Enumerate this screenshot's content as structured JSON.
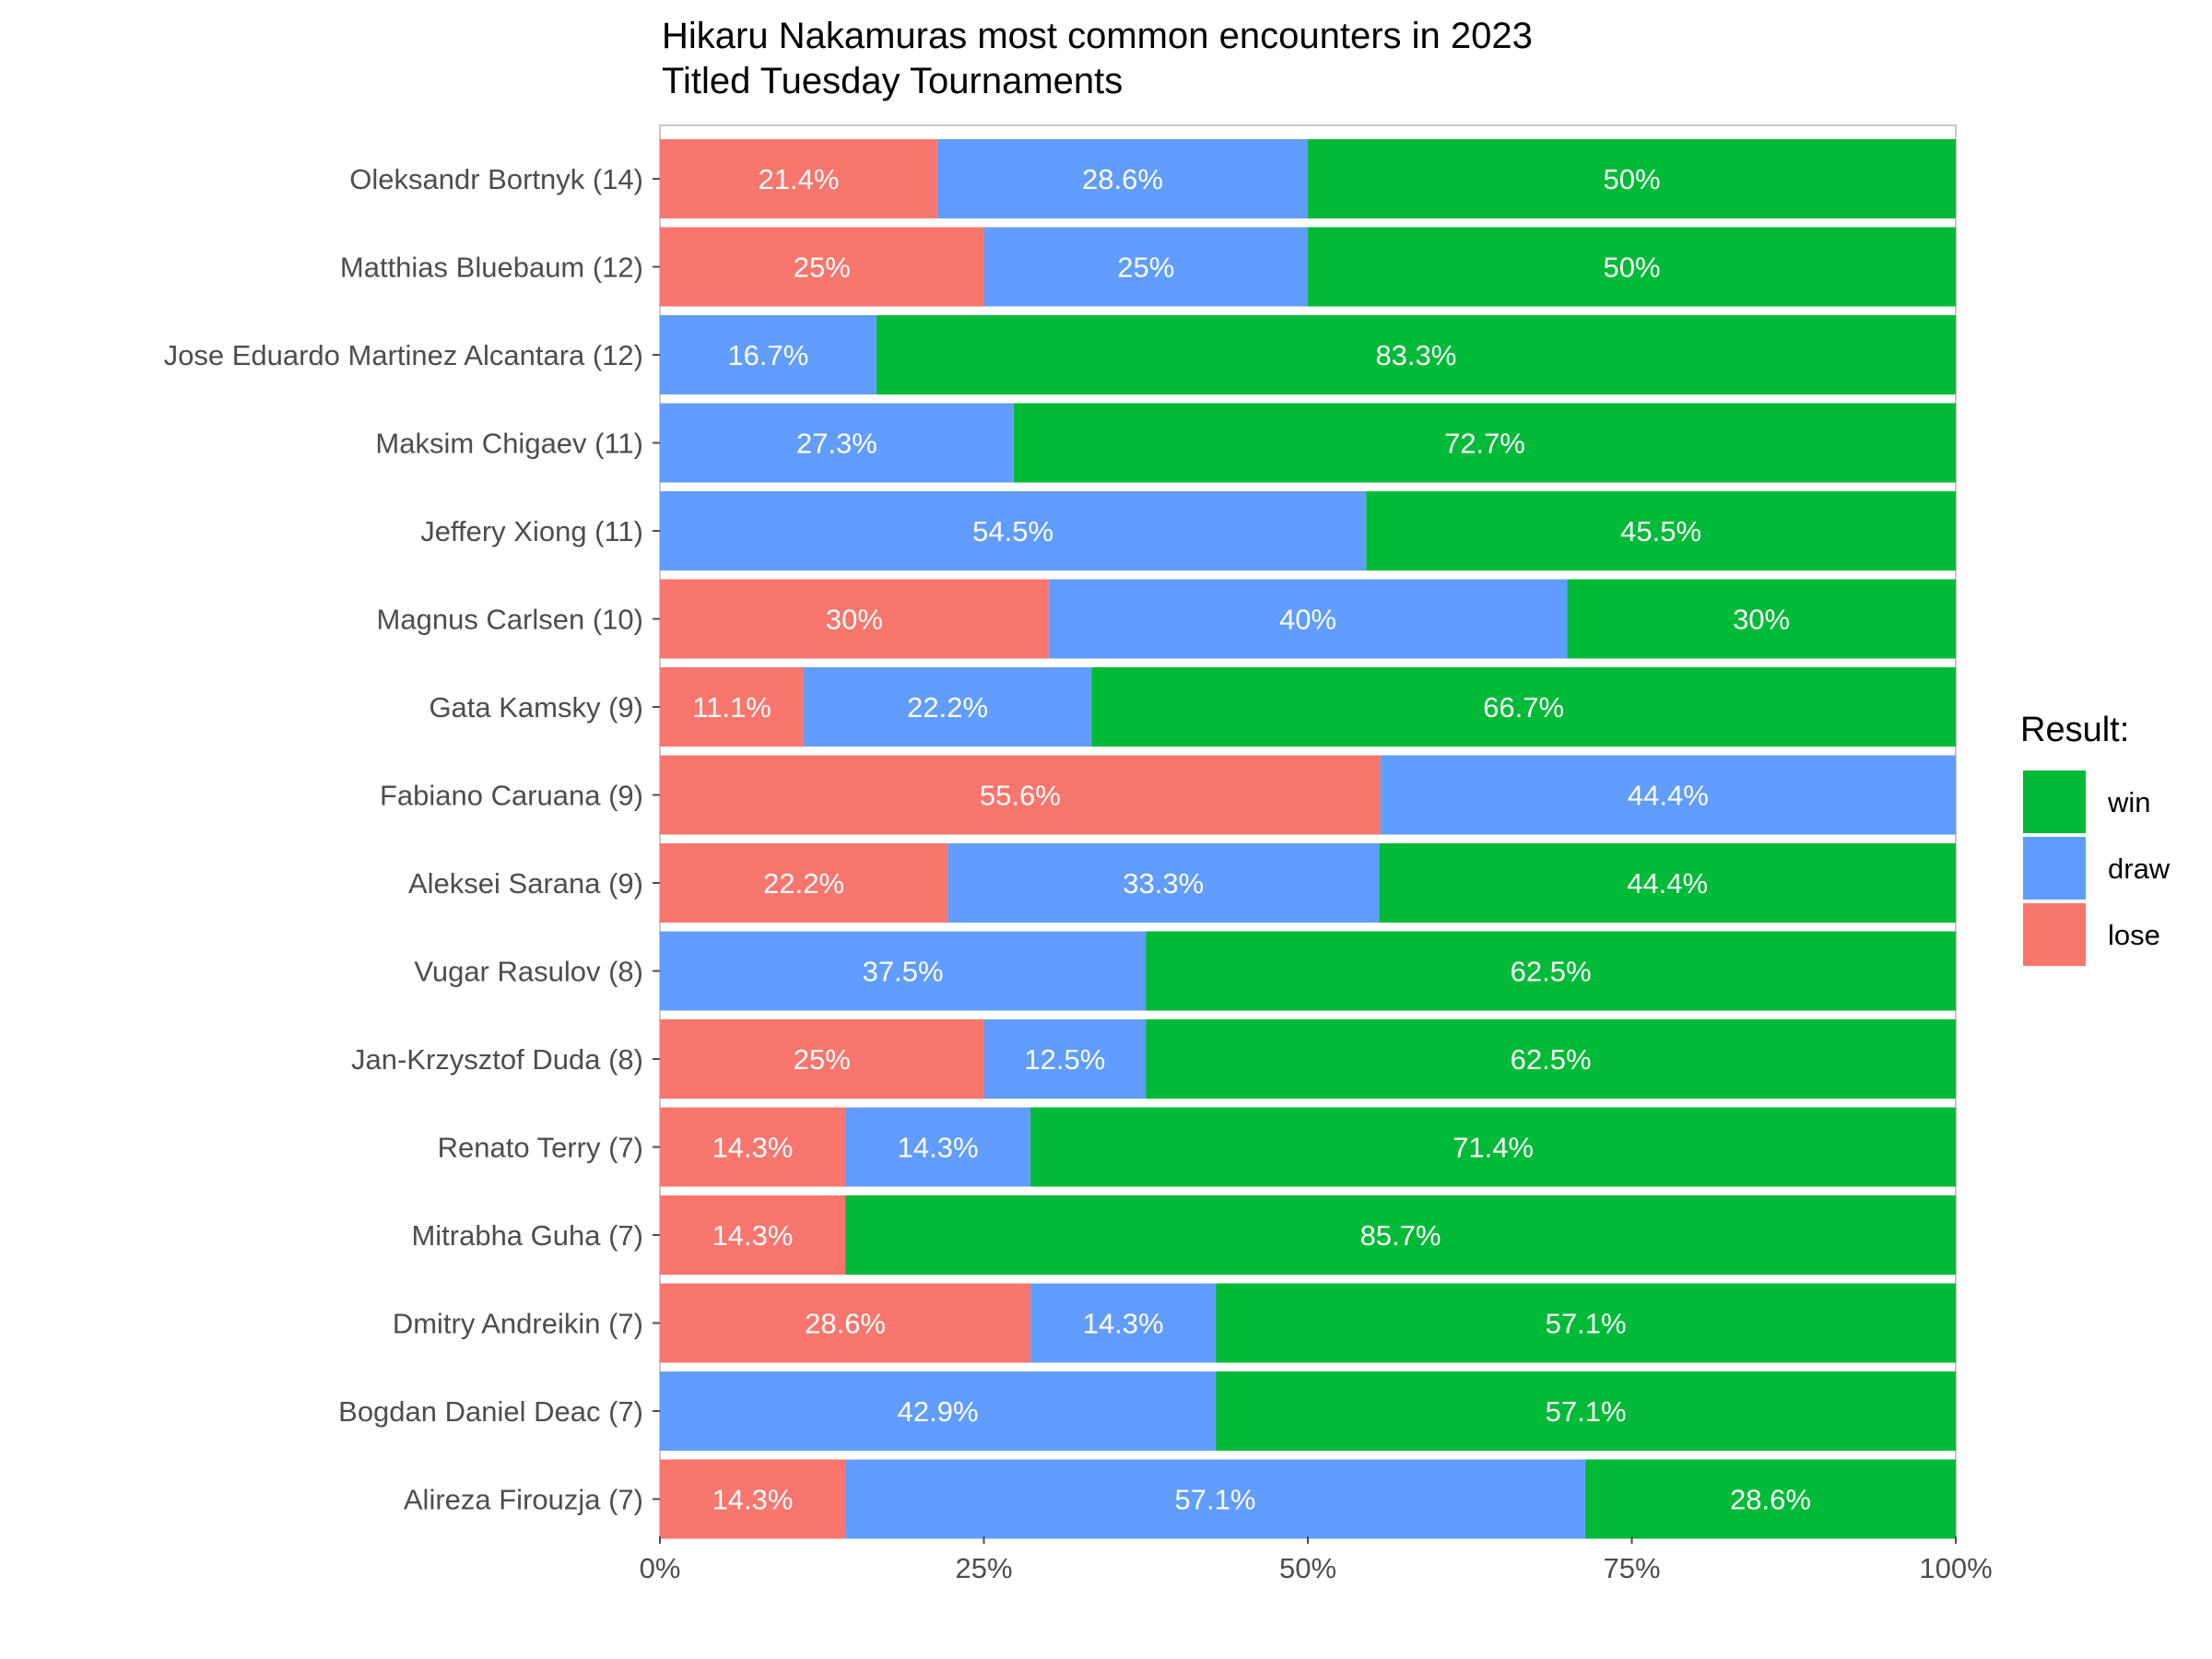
{
  "chart_data": {
    "type": "bar",
    "orientation": "horizontal",
    "stacked": true,
    "normalized": true,
    "title": "Hikaru Nakamuras most common encounters in 2023",
    "subtitle": "Titled Tuesday Tournaments",
    "xlabel": "",
    "ylabel": "",
    "xlim": [
      0,
      100
    ],
    "xticks": [
      "0%",
      "25%",
      "50%",
      "75%",
      "100%"
    ],
    "grid": false,
    "legend_title": "Result:",
    "legend_position": "right",
    "legend_entries": [
      "win",
      "draw",
      "lose"
    ],
    "colors": {
      "lose": "#F8766D",
      "draw": "#619CFF",
      "win": "#00BA38"
    },
    "stack_order": [
      "lose",
      "draw",
      "win"
    ],
    "categories": [
      "Oleksandr Bortnyk (14)",
      "Matthias Bluebaum (12)",
      "Jose Eduardo Martinez Alcantara (12)",
      "Maksim Chigaev (11)",
      "Jeffery Xiong (11)",
      "Magnus Carlsen (10)",
      "Gata Kamsky (9)",
      "Fabiano Caruana (9)",
      "Aleksei Sarana (9)",
      "Vugar Rasulov (8)",
      "Jan-Krzysztof Duda (8)",
      "Renato Terry (7)",
      "Mitrabha Guha (7)",
      "Dmitry Andreikin (7)",
      "Bogdan Daniel Deac (7)",
      "Alireza Firouzja (7)"
    ],
    "series": [
      {
        "name": "lose",
        "values": [
          21.4,
          25,
          0,
          0,
          0,
          30,
          11.1,
          55.6,
          22.2,
          0,
          25,
          14.3,
          14.3,
          28.6,
          0,
          14.3
        ],
        "labels": [
          "21.4%",
          "25%",
          "",
          "",
          "",
          "30%",
          "11.1%",
          "55.6%",
          "22.2%",
          "",
          "25%",
          "14.3%",
          "14.3%",
          "28.6%",
          "",
          "14.3%"
        ]
      },
      {
        "name": "draw",
        "values": [
          28.6,
          25,
          16.7,
          27.3,
          54.5,
          40,
          22.2,
          44.4,
          33.3,
          37.5,
          12.5,
          14.3,
          0,
          14.3,
          42.9,
          57.1
        ],
        "labels": [
          "28.6%",
          "25%",
          "16.7%",
          "27.3%",
          "54.5%",
          "40%",
          "22.2%",
          "44.4%",
          "33.3%",
          "37.5%",
          "12.5%",
          "14.3%",
          "",
          "14.3%",
          "42.9%",
          "57.1%"
        ]
      },
      {
        "name": "win",
        "values": [
          50,
          50,
          83.3,
          72.7,
          45.5,
          30,
          66.7,
          0,
          44.4,
          62.5,
          62.5,
          71.4,
          85.7,
          57.1,
          57.1,
          28.6
        ],
        "labels": [
          "50%",
          "50%",
          "83.3%",
          "72.7%",
          "45.5%",
          "30%",
          "66.7%",
          "",
          "44.4%",
          "62.5%",
          "62.5%",
          "71.4%",
          "85.7%",
          "57.1%",
          "57.1%",
          "28.6%"
        ]
      }
    ]
  }
}
